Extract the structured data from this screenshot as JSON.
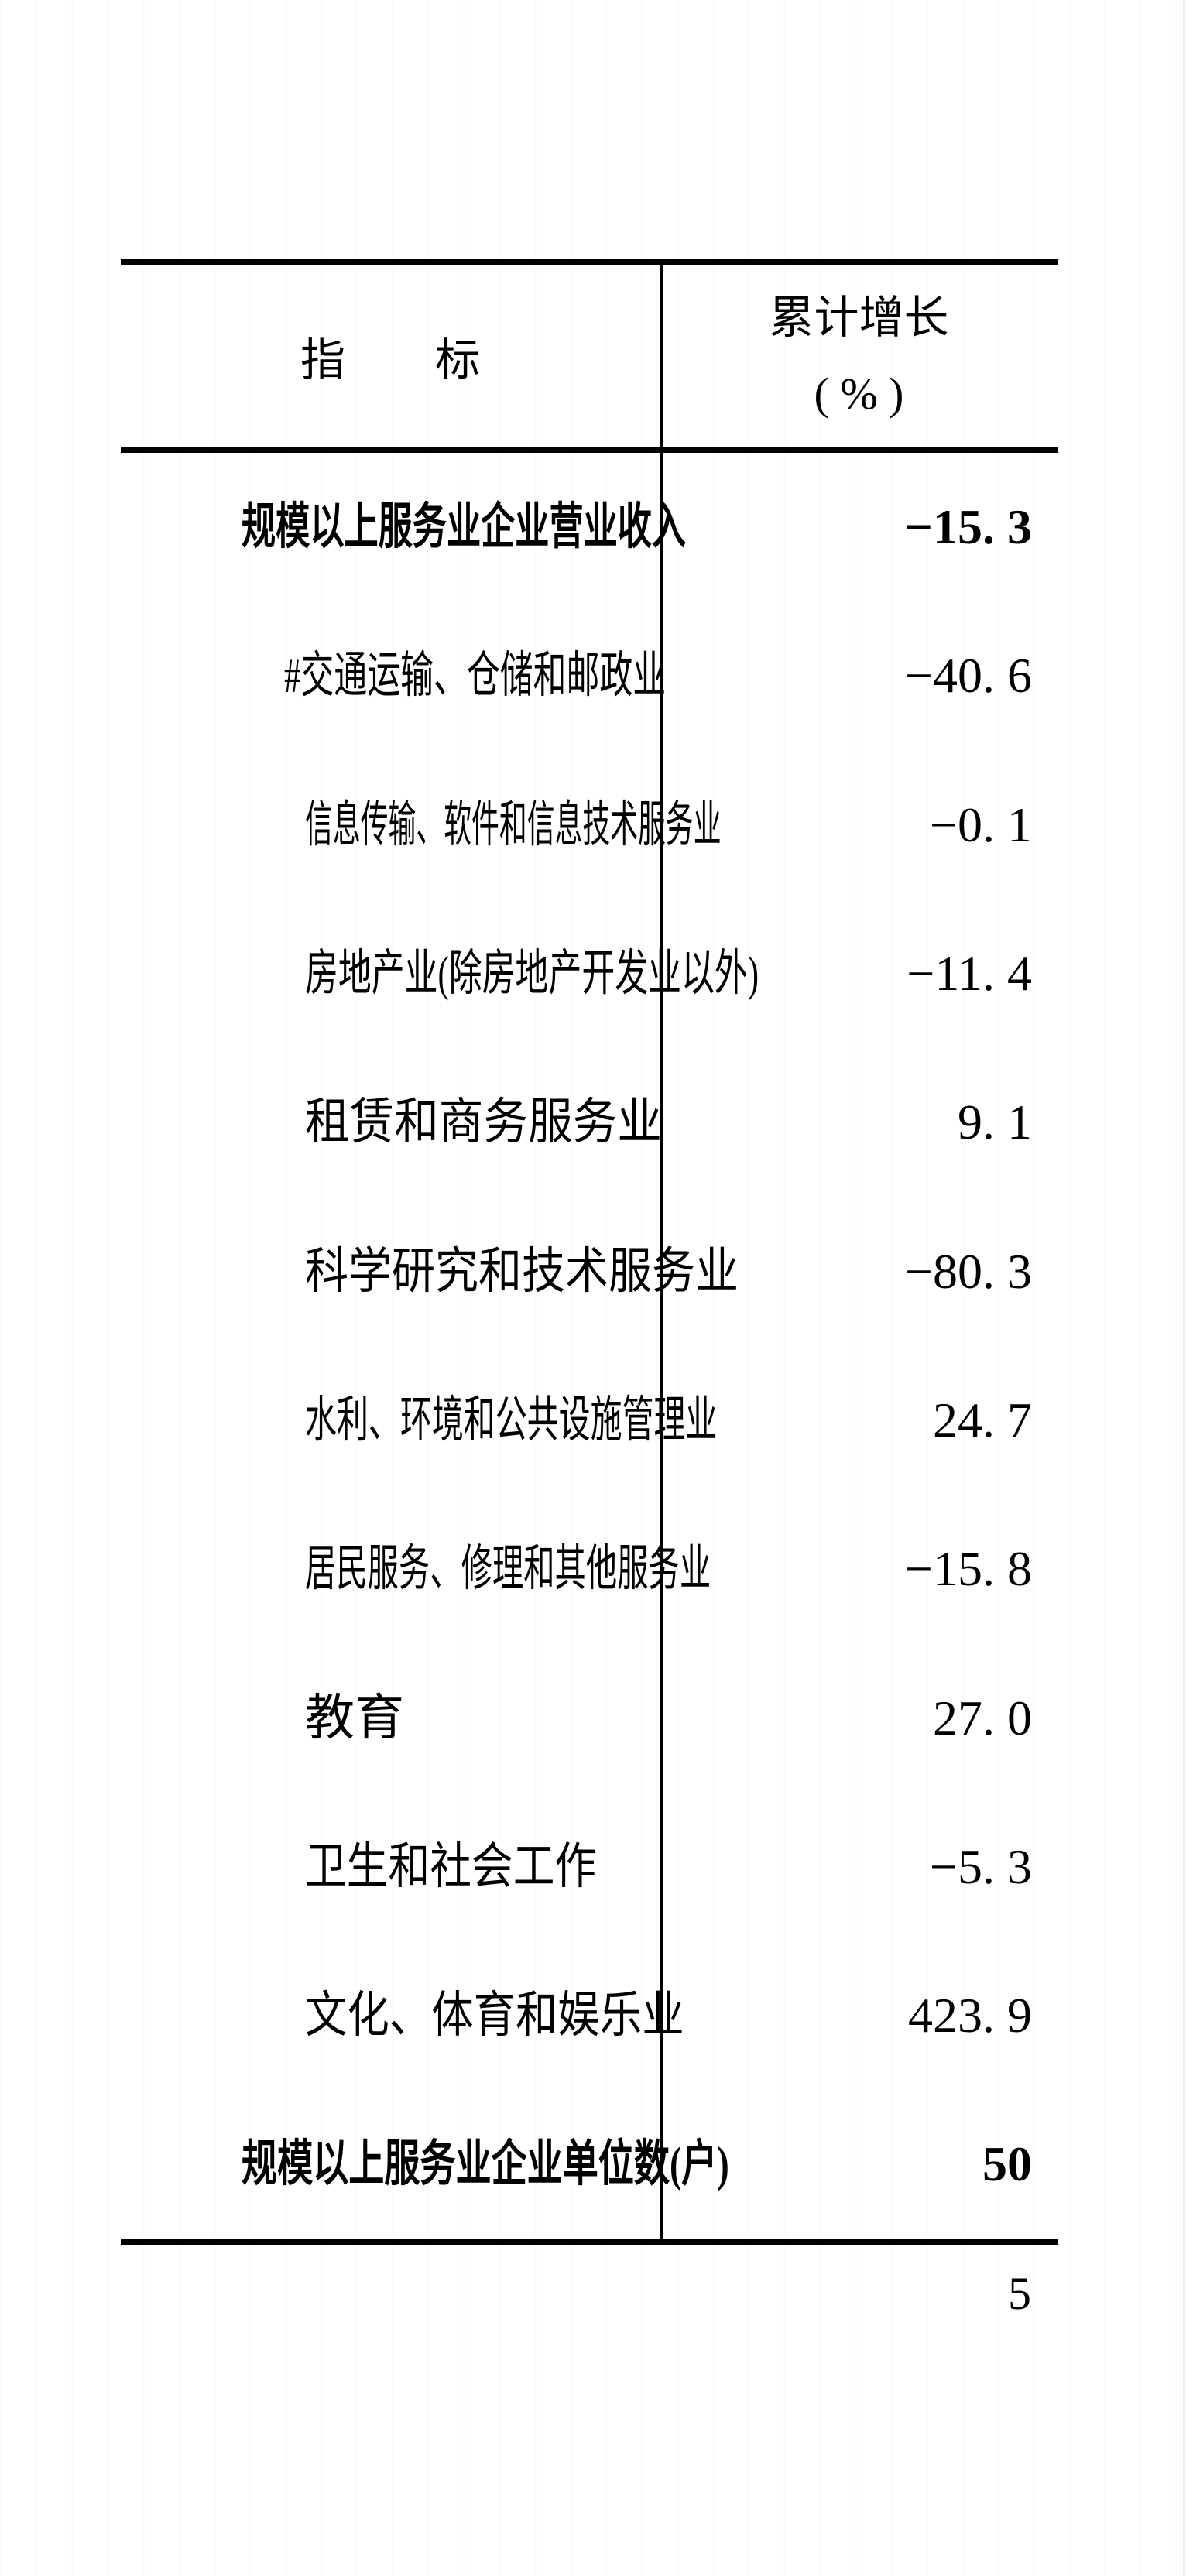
{
  "page": {
    "number": "5",
    "background_color": "#ffffff",
    "text_color": "#000000"
  },
  "table": {
    "header": {
      "col1": "指        标",
      "col2_line1": "累计增长",
      "col2_line2": "( % )"
    },
    "rows": [
      {
        "label": "规模以上服务业企业营业收入",
        "value": "−15. 3",
        "bold": true,
        "indent": 0
      },
      {
        "label": "#交通运输、仓储和邮政业",
        "value": "−40. 6",
        "bold": false,
        "indent": 1
      },
      {
        "label": "信息传输、软件和信息技术服务业",
        "value": "−0. 1",
        "bold": false,
        "indent": 2
      },
      {
        "label": "房地产业(除房地产开发业以外)",
        "value": "−11. 4",
        "bold": false,
        "indent": 2
      },
      {
        "label": "租赁和商务服务业",
        "value": "9. 1",
        "bold": false,
        "indent": 2
      },
      {
        "label": "科学研究和技术服务业",
        "value": "−80. 3",
        "bold": false,
        "indent": 2
      },
      {
        "label": "水利、环境和公共设施管理业",
        "value": "24. 7",
        "bold": false,
        "indent": 2
      },
      {
        "label": "居民服务、修理和其他服务业",
        "value": "−15. 8",
        "bold": false,
        "indent": 2
      },
      {
        "label": "教育",
        "value": "27. 0",
        "bold": false,
        "indent": 2
      },
      {
        "label": "卫生和社会工作",
        "value": "−5. 3",
        "bold": false,
        "indent": 2
      },
      {
        "label": "文化、体育和娱乐业",
        "value": "423. 9",
        "bold": false,
        "indent": 2
      },
      {
        "label": "规模以上服务业企业单位数(户)",
        "value": "50",
        "bold": true,
        "indent": 0
      }
    ]
  }
}
